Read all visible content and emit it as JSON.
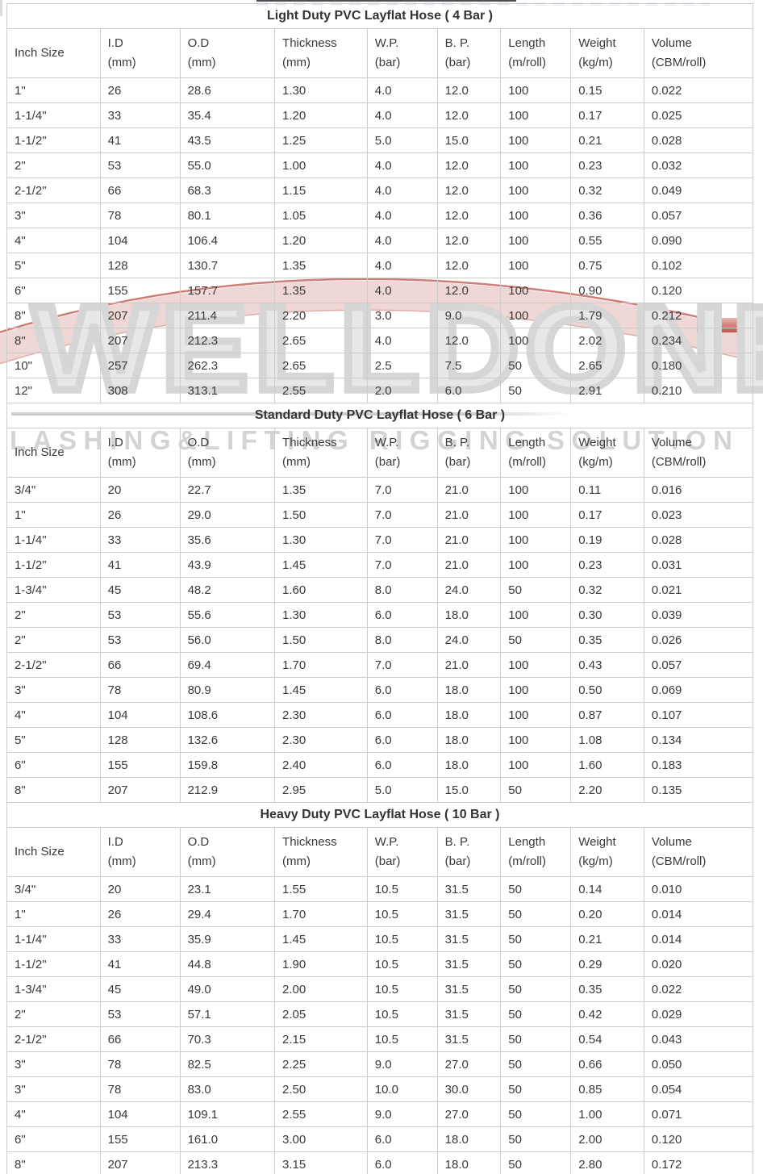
{
  "watermark": {
    "brand": "WELLDONE",
    "tagline": "LASHING&LIFTING RIGGING SOLUTION",
    "gray": "#d6d6d6",
    "accent_red": "#bb544d",
    "swoosh_pink": "#eedbd8"
  },
  "columns": [
    {
      "line1": "Inch Size",
      "line2": ""
    },
    {
      "line1": "I.D",
      "line2": "(mm)"
    },
    {
      "line1": "O.D",
      "line2": "(mm)"
    },
    {
      "line1": "Thickness",
      "line2": "(mm)"
    },
    {
      "line1": "W.P.",
      "line2": "(bar)"
    },
    {
      "line1": "B. P.",
      "line2": "(bar)"
    },
    {
      "line1": "Length",
      "line2": "(m/roll)"
    },
    {
      "line1": "Weight",
      "line2": "(kg/m)"
    },
    {
      "line1": "Volume",
      "line2": "(CBM/roll)"
    }
  ],
  "tables": [
    {
      "title": "Light Duty PVC Layflat Hose ( 4 Bar )",
      "rows": [
        [
          "1\"",
          "26",
          "28.6",
          "1.30",
          "4.0",
          "12.0",
          "100",
          "0.15",
          "0.022"
        ],
        [
          "1-1/4\"",
          "33",
          "35.4",
          "1.20",
          "4.0",
          "12.0",
          "100",
          "0.17",
          "0.025"
        ],
        [
          "1-1/2\"",
          "41",
          "43.5",
          "1.25",
          "5.0",
          "15.0",
          "100",
          "0.21",
          "0.028"
        ],
        [
          "2\"",
          "53",
          "55.0",
          "1.00",
          "4.0",
          "12.0",
          "100",
          "0.23",
          "0.032"
        ],
        [
          "2-1/2\"",
          "66",
          "68.3",
          "1.15",
          "4.0",
          "12.0",
          "100",
          "0.32",
          "0.049"
        ],
        [
          "3\"",
          "78",
          "80.1",
          "1.05",
          "4.0",
          "12.0",
          "100",
          "0.36",
          "0.057"
        ],
        [
          "4\"",
          "104",
          "106.4",
          "1.20",
          "4.0",
          "12.0",
          "100",
          "0.55",
          "0.090"
        ],
        [
          "5\"",
          "128",
          "130.7",
          "1.35",
          "4.0",
          "12.0",
          "100",
          "0.75",
          "0.102"
        ],
        [
          "6\"",
          "155",
          "157.7",
          "1.35",
          "4.0",
          "12.0",
          "100",
          "0.90",
          "0.120"
        ],
        [
          "8\"",
          "207",
          "211.4",
          "2.20",
          "3.0",
          "9.0",
          "100",
          "1.79",
          "0.212"
        ],
        [
          "8\"",
          "207",
          "212.3",
          "2.65",
          "4.0",
          "12.0",
          "100",
          "2.02",
          "0.234"
        ],
        [
          "10\"",
          "257",
          "262.3",
          "2.65",
          "2.5",
          "7.5",
          "50",
          "2.65",
          "0.180"
        ],
        [
          "12\"",
          "308",
          "313.1",
          "2.55",
          "2.0",
          "6.0",
          "50",
          "2.91",
          "0.210"
        ]
      ]
    },
    {
      "title": "Standard Duty PVC Layflat Hose ( 6 Bar )",
      "rows": [
        [
          "3/4\"",
          "20",
          "22.7",
          "1.35",
          "7.0",
          "21.0",
          "100",
          "0.11",
          "0.016"
        ],
        [
          "1\"",
          "26",
          "29.0",
          "1.50",
          "7.0",
          "21.0",
          "100",
          "0.17",
          "0.023"
        ],
        [
          "1-1/4\"",
          "33",
          "35.6",
          "1.30",
          "7.0",
          "21.0",
          "100",
          "0.19",
          "0.028"
        ],
        [
          "1-1/2\"",
          "41",
          "43.9",
          "1.45",
          "7.0",
          "21.0",
          "100",
          "0.23",
          "0.031"
        ],
        [
          "1-3/4\"",
          "45",
          "48.2",
          "1.60",
          "8.0",
          "24.0",
          "50",
          "0.32",
          "0.021"
        ],
        [
          "2\"",
          "53",
          "55.6",
          "1.30",
          "6.0",
          "18.0",
          "100",
          "0.30",
          "0.039"
        ],
        [
          "2\"",
          "53",
          "56.0",
          "1.50",
          "8.0",
          "24.0",
          "50",
          "0.35",
          "0.026"
        ],
        [
          "2-1/2\"",
          "66",
          "69.4",
          "1.70",
          "7.0",
          "21.0",
          "100",
          "0.43",
          "0.057"
        ],
        [
          "3\"",
          "78",
          "80.9",
          "1.45",
          "6.0",
          "18.0",
          "100",
          "0.50",
          "0.069"
        ],
        [
          "4\"",
          "104",
          "108.6",
          "2.30",
          "6.0",
          "18.0",
          "100",
          "0.87",
          "0.107"
        ],
        [
          "5\"",
          "128",
          "132.6",
          "2.30",
          "6.0",
          "18.0",
          "100",
          "1.08",
          "0.134"
        ],
        [
          "6\"",
          "155",
          "159.8",
          "2.40",
          "6.0",
          "18.0",
          "100",
          "1.60",
          "0.183"
        ],
        [
          "8\"",
          "207",
          "212.9",
          "2.95",
          "5.0",
          "15.0",
          "50",
          "2.20",
          "0.135"
        ]
      ]
    },
    {
      "title": "Heavy Duty PVC Layflat Hose ( 10 Bar )",
      "rows": [
        [
          "3/4\"",
          "20",
          "23.1",
          "1.55",
          "10.5",
          "31.5",
          "50",
          "0.14",
          "0.010"
        ],
        [
          "1\"",
          "26",
          "29.4",
          "1.70",
          "10.5",
          "31.5",
          "50",
          "0.20",
          "0.014"
        ],
        [
          "1-1/4\"",
          "33",
          "35.9",
          "1.45",
          "10.5",
          "31.5",
          "50",
          "0.21",
          "0.014"
        ],
        [
          "1-1/2\"",
          "41",
          "44.8",
          "1.90",
          "10.5",
          "31.5",
          "50",
          "0.29",
          "0.020"
        ],
        [
          "1-3/4\"",
          "45",
          "49.0",
          "2.00",
          "10.5",
          "31.5",
          "50",
          "0.35",
          "0.022"
        ],
        [
          "2\"",
          "53",
          "57.1",
          "2.05",
          "10.5",
          "31.5",
          "50",
          "0.42",
          "0.029"
        ],
        [
          "2-1/2\"",
          "66",
          "70.3",
          "2.15",
          "10.5",
          "31.5",
          "50",
          "0.54",
          "0.043"
        ],
        [
          "3\"",
          "78",
          "82.5",
          "2.25",
          "9.0",
          "27.0",
          "50",
          "0.66",
          "0.050"
        ],
        [
          "3\"",
          "78",
          "83.0",
          "2.50",
          "10.0",
          "30.0",
          "50",
          "0.85",
          "0.054"
        ],
        [
          "4\"",
          "104",
          "109.1",
          "2.55",
          "9.0",
          "27.0",
          "50",
          "1.00",
          "0.071"
        ],
        [
          "6\"",
          "155",
          "161.0",
          "3.00",
          "6.0",
          "18.0",
          "50",
          "2.00",
          "0.120"
        ],
        [
          "8\"",
          "207",
          "213.3",
          "3.15",
          "6.0",
          "18.0",
          "50",
          "2.80",
          "0.172"
        ]
      ]
    }
  ]
}
